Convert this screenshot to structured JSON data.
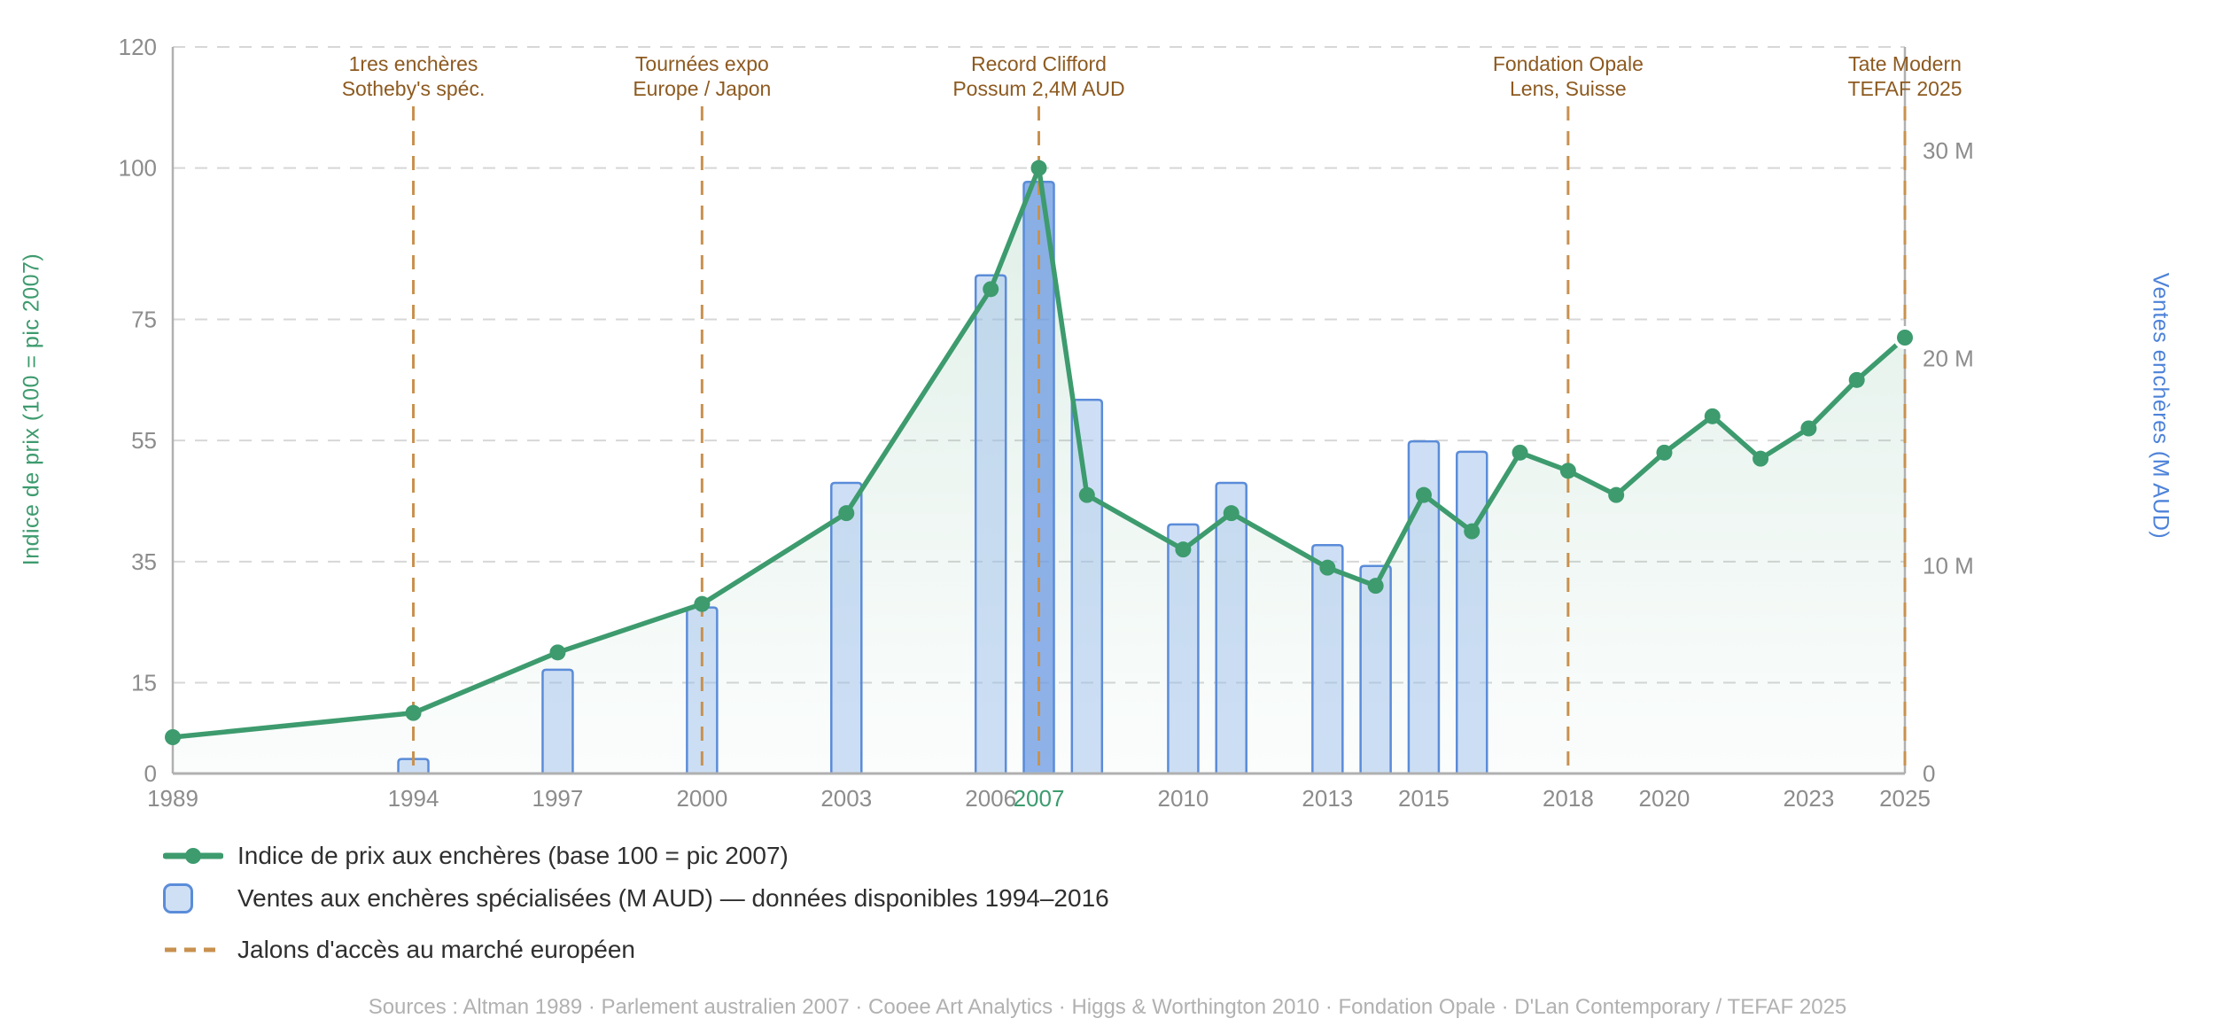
{
  "chart_data": {
    "type": "line+bar",
    "x_axis": {
      "range": [
        1989,
        2025
      ],
      "tick_years": [
        1989,
        1994,
        1997,
        2000,
        2003,
        2006,
        2007,
        2010,
        2013,
        2015,
        2018,
        2020,
        2023,
        2025
      ],
      "highlight_year": 2007
    },
    "left_axis": {
      "label": "Indice de prix (100 = pic 2007)",
      "ticks": [
        0,
        15,
        35,
        55,
        75,
        100,
        120
      ],
      "range": [
        0,
        120
      ],
      "color": "#3d9b6e"
    },
    "right_axis": {
      "label": "Ventes enchères (M AUD)",
      "ticks": [
        {
          "value": 0,
          "label": "0"
        },
        {
          "value": 10,
          "label": "10 M"
        },
        {
          "value": 20,
          "label": "20 M"
        },
        {
          "value": 30,
          "label": "30 M"
        }
      ],
      "range": [
        0,
        35
      ],
      "color": "#4d82d9"
    },
    "line_series": {
      "name": "Indice de prix aux enchères (base 100 = pic 2007)",
      "color": "#3d9b6e",
      "points": [
        {
          "year": 1989,
          "value": 6
        },
        {
          "year": 1994,
          "value": 10
        },
        {
          "year": 1997,
          "value": 20
        },
        {
          "year": 2000,
          "value": 28
        },
        {
          "year": 2003,
          "value": 43
        },
        {
          "year": 2006,
          "value": 80
        },
        {
          "year": 2007,
          "value": 100
        },
        {
          "year": 2008,
          "value": 46
        },
        {
          "year": 2010,
          "value": 37
        },
        {
          "year": 2011,
          "value": 43
        },
        {
          "year": 2013,
          "value": 34
        },
        {
          "year": 2014,
          "value": 31
        },
        {
          "year": 2015,
          "value": 46
        },
        {
          "year": 2016,
          "value": 40
        },
        {
          "year": 2017,
          "value": 53
        },
        {
          "year": 2018,
          "value": 50
        },
        {
          "year": 2019,
          "value": 46
        },
        {
          "year": 2020,
          "value": 53
        },
        {
          "year": 2021,
          "value": 59
        },
        {
          "year": 2022,
          "value": 52
        },
        {
          "year": 2023,
          "value": 57
        },
        {
          "year": 2024,
          "value": 65
        },
        {
          "year": 2025,
          "value": 72
        }
      ]
    },
    "bar_series": {
      "name": "Ventes aux enchères spécialisées (M AUD) — données disponibles 1994–2016",
      "unit": "M AUD",
      "points": [
        {
          "year": 1994,
          "value": 0.7
        },
        {
          "year": 1997,
          "value": 5
        },
        {
          "year": 2000,
          "value": 8
        },
        {
          "year": 2003,
          "value": 14
        },
        {
          "year": 2006,
          "value": 24
        },
        {
          "year": 2007,
          "value": 28.5,
          "emphasis": true
        },
        {
          "year": 2008,
          "value": 18
        },
        {
          "year": 2010,
          "value": 12
        },
        {
          "year": 2011,
          "value": 14
        },
        {
          "year": 2013,
          "value": 11
        },
        {
          "year": 2014,
          "value": 10
        },
        {
          "year": 2015,
          "value": 16
        },
        {
          "year": 2016,
          "value": 15.5
        }
      ]
    },
    "milestones": {
      "name": "Jalons d'accès au marché européen",
      "items": [
        {
          "year": 1994,
          "label_lines": [
            "1res enchères",
            "Sotheby's spéc."
          ]
        },
        {
          "year": 2000,
          "label_lines": [
            "Tournées expo",
            "Europe / Japon"
          ]
        },
        {
          "year": 2007,
          "label_lines": [
            "Record Clifford",
            "Possum 2,4M AUD"
          ]
        },
        {
          "year": 2018,
          "label_lines": [
            "Fondation Opale",
            "Lens, Suisse"
          ]
        },
        {
          "year": 2025,
          "label_lines": [
            "Tate Modern",
            "TEFAF 2025"
          ]
        }
      ]
    },
    "legend": [
      {
        "swatch": "line-dot",
        "label": "Indice de prix aux enchères (base 100 = pic 2007)"
      },
      {
        "swatch": "blue-box",
        "label": "Ventes aux enchères spécialisées (M AUD) — données disponibles 1994–2016"
      },
      {
        "swatch": "orange-dash",
        "label": "Jalons d'accès au marché européen"
      }
    ],
    "source_note": "Sources : Altman 1989 · Parlement australien 2007 · Cooee Art Analytics · Higgs & Worthington 2010 · Fondation Opale · D'Lan Contemporary / TEFAF 2025",
    "colors": {
      "line_green": "#3d9b6e",
      "area_top": "rgba(61,155,110,0.16)",
      "area_bottom": "rgba(61,155,110,0.02)",
      "bar_fill": "#9dbfec",
      "bar_fill_opacity": "0.5",
      "bar_emphasis_fill": "#6f9ce3",
      "bar_emphasis_opacity": "0.78",
      "bar_stroke": "#5b8cd9",
      "legend_box_fill": "#cfe0f5",
      "milestone": "#c8914f",
      "annotation_text": "#8d5a20",
      "grid": "#d7d7d7",
      "axis_line": "#b0b0b0",
      "tick_text": "#8c8c8c",
      "legend_text": "#2f2f2f",
      "source_text": "#b1b1b1"
    }
  }
}
